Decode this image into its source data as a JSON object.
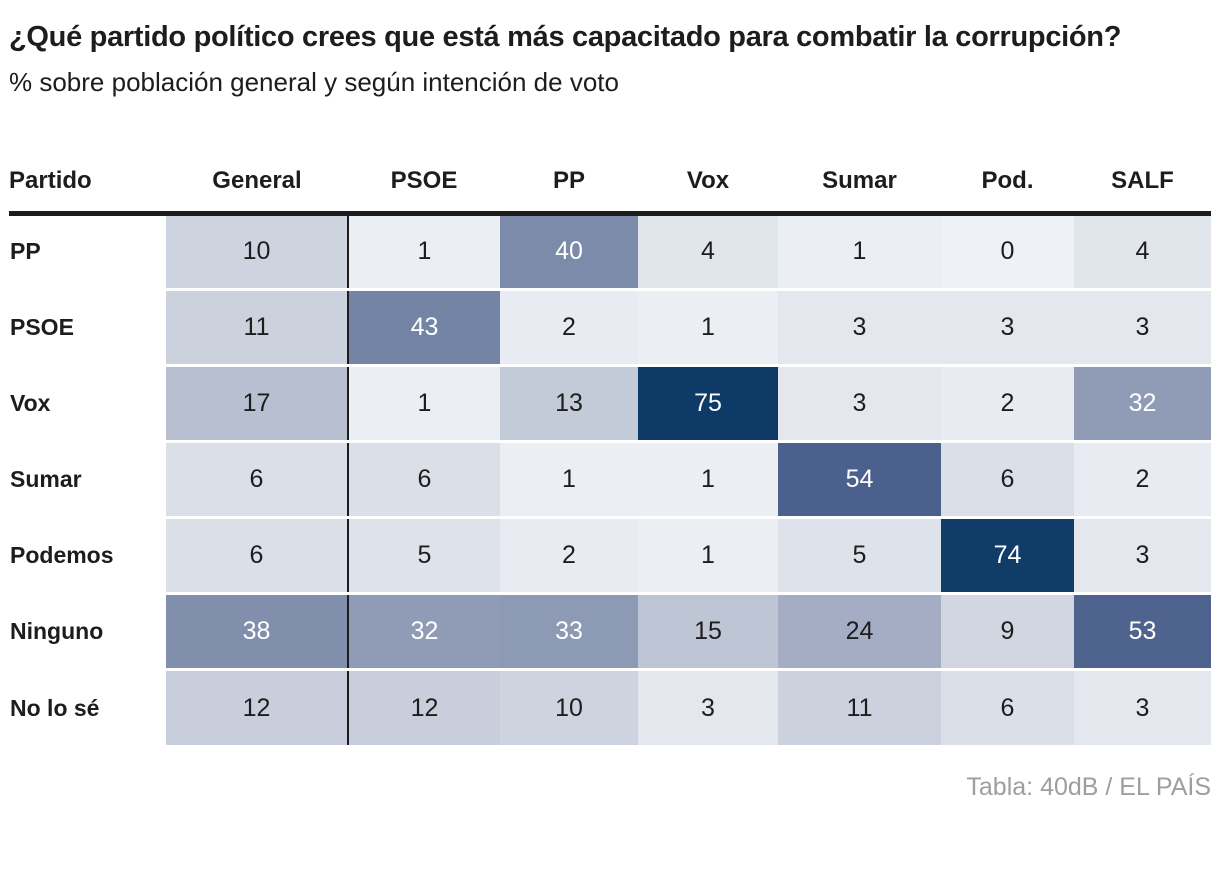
{
  "title": "¿Qué partido político crees que está más capacitado para combatir la corrupción?",
  "subtitle": "% sobre población general y según intención de voto",
  "credit": "Tabla: 40dB / EL PAÍS",
  "colors": {
    "dark_text": "#1d1d1d",
    "light_text": "#ffffff",
    "header_rule": "#1d1d1d",
    "column_divider": "#1d1d1d",
    "row_gap": "#ffffff",
    "credit_text": "#9e9e9e"
  },
  "chart_data": {
    "type": "heatmap",
    "title": "¿Qué partido político crees que está más capacitado para combatir la corrupción?",
    "subtitle": "% sobre población general y según intención de voto",
    "value_unit": "%",
    "corner_label": "Partido",
    "columns": [
      "General",
      "PSOE",
      "PP",
      "Vox",
      "Sumar",
      "Pod.",
      "SALF"
    ],
    "rows": [
      "PP",
      "PSOE",
      "Vox",
      "Sumar",
      "Podemos",
      "Ninguno",
      "No lo sé"
    ],
    "values": [
      [
        10,
        1,
        40,
        4,
        1,
        0,
        4
      ],
      [
        11,
        43,
        2,
        1,
        3,
        3,
        3
      ],
      [
        17,
        1,
        13,
        75,
        3,
        2,
        32
      ],
      [
        6,
        6,
        1,
        1,
        54,
        6,
        2
      ],
      [
        6,
        5,
        2,
        1,
        5,
        74,
        3
      ],
      [
        38,
        32,
        33,
        15,
        24,
        9,
        53
      ],
      [
        12,
        12,
        10,
        3,
        11,
        6,
        3
      ]
    ],
    "color_scale": {
      "stops": [
        [
          0,
          "#eef1f5"
        ],
        [
          20,
          "#aeb6c9"
        ],
        [
          45,
          "#6f80a1"
        ],
        [
          55,
          "#475c8a"
        ],
        [
          75,
          "#0d3a66"
        ]
      ],
      "light_text_threshold": 30
    },
    "legend": "none",
    "grid": "off",
    "source": "Tabla: 40dB / EL PAÍS"
  }
}
